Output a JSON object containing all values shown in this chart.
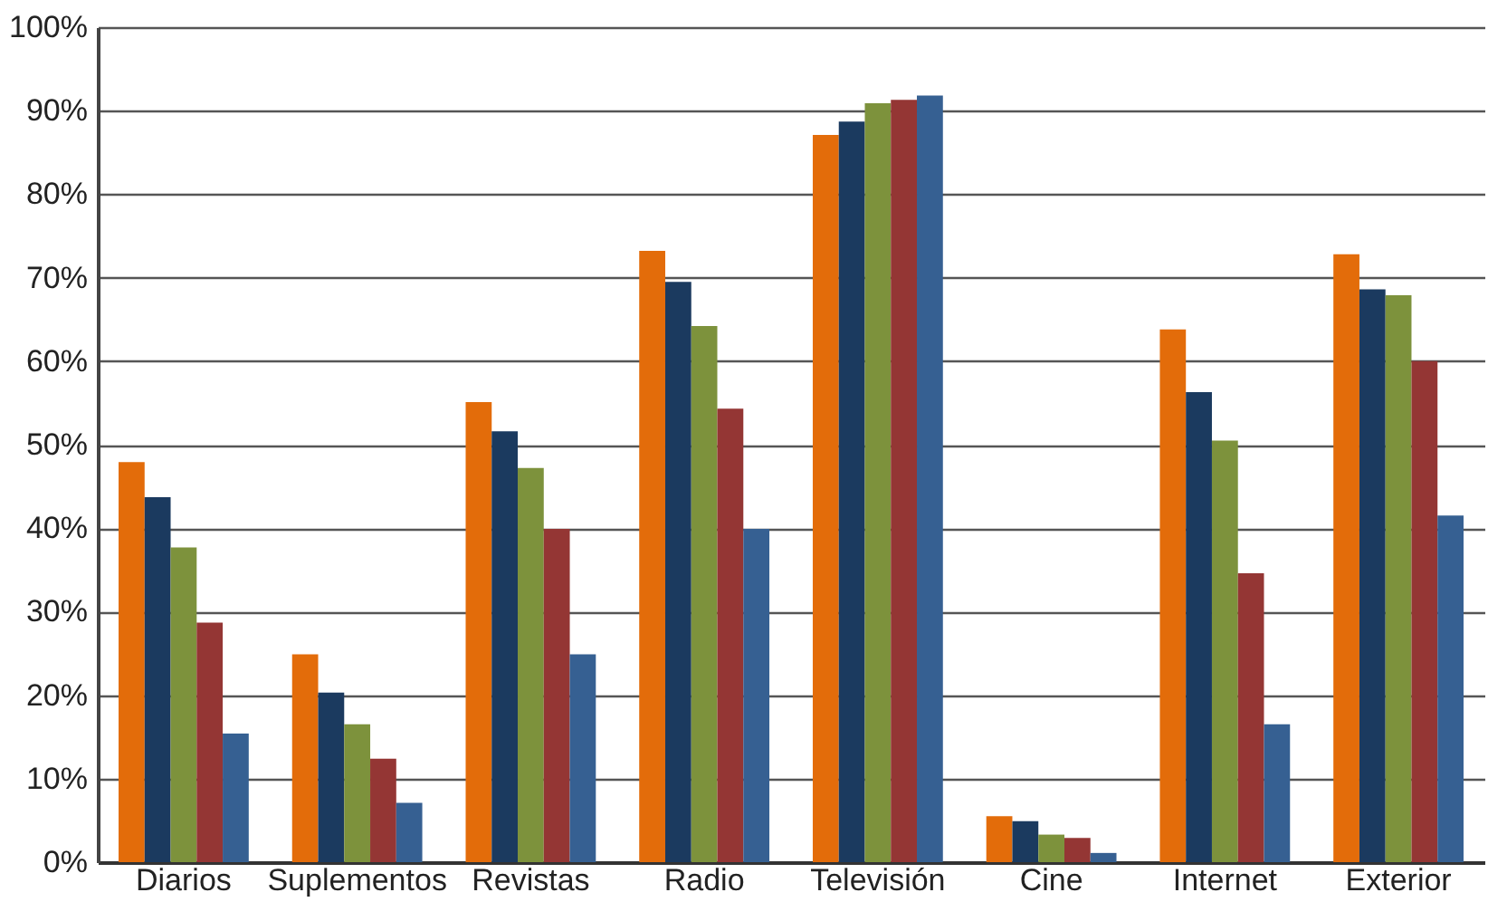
{
  "chart_data": {
    "type": "bar",
    "categories": [
      "Diarios",
      "Suplementos",
      "Revistas",
      "Radio",
      "Televisión",
      "Cine",
      "Internet",
      "Exterior"
    ],
    "series": [
      {
        "color": "#e36c0a",
        "values": [
          47.9,
          24.9,
          55.1,
          73.2,
          87.1,
          5.5,
          63.8,
          72.8
        ]
      },
      {
        "color": "#1b3a5f",
        "values": [
          43.7,
          20.3,
          51.6,
          69.5,
          88.7,
          4.9,
          56.3,
          68.6
        ]
      },
      {
        "color": "#7d923c",
        "values": [
          37.7,
          16.5,
          47.2,
          64.2,
          90.9,
          3.3,
          50.5,
          67.9
        ]
      },
      {
        "color": "#943634",
        "values": [
          28.7,
          12.4,
          39.9,
          54.3,
          91.3,
          2.9,
          34.6,
          60.0
        ]
      },
      {
        "color": "#366092",
        "values": [
          15.4,
          7.1,
          24.9,
          39.9,
          91.8,
          1.1,
          16.5,
          41.5
        ]
      }
    ],
    "ylim": [
      0,
      100
    ],
    "yticks": [
      {
        "value": 0,
        "label": "0%"
      },
      {
        "value": 10,
        "label": "10%"
      },
      {
        "value": 20,
        "label": "20%"
      },
      {
        "value": 30,
        "label": "30%"
      },
      {
        "value": 40,
        "label": "40%"
      },
      {
        "value": 50,
        "label": "50%"
      },
      {
        "value": 60,
        "label": "60%"
      },
      {
        "value": 70,
        "label": "70%"
      },
      {
        "value": 80,
        "label": "80%"
      },
      {
        "value": 90,
        "label": "90%"
      },
      {
        "value": 100,
        "label": "100%"
      }
    ],
    "grid": "y",
    "legend": false
  }
}
